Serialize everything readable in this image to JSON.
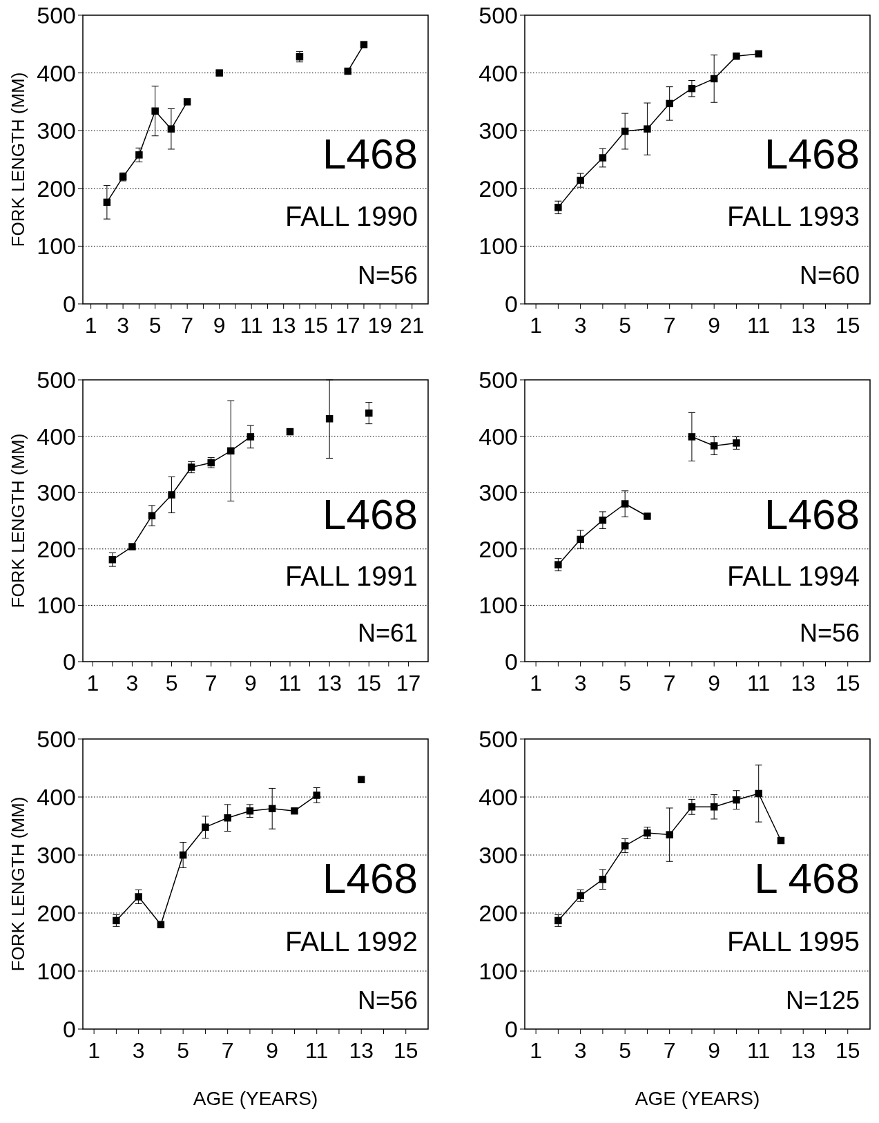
{
  "chart_data": [
    {
      "type": "line",
      "ylabel": "FORK LENGTH (MM)",
      "annotations": [
        "L468",
        "FALL 1990",
        "N=56"
      ],
      "series": [
        {
          "color": "#000000",
          "x": [
            2,
            3,
            4,
            5,
            6,
            7
          ],
          "values": [
            176,
            220,
            258,
            334,
            303,
            350
          ],
          "errors": [
            29,
            7,
            12,
            43,
            35,
            null
          ]
        },
        {
          "color": "#000000",
          "x": [
            9
          ],
          "values": [
            400
          ]
        },
        {
          "color": "#000000",
          "x": [
            14
          ],
          "values": [
            428
          ],
          "errors": [
            9
          ]
        },
        {
          "color": "#000000",
          "x": [
            17,
            18
          ],
          "values": [
            403,
            449
          ]
        }
      ],
      "xlim": [
        0.5,
        22
      ],
      "xticks": [
        1,
        {
          "value": 2,
          "label": null
        },
        3,
        {
          "value": 4,
          "label": null
        },
        5,
        {
          "value": 6,
          "label": null
        },
        7,
        {
          "value": 8,
          "label": null
        },
        9,
        {
          "value": 10,
          "label": null
        },
        11,
        {
          "value": 12,
          "label": null
        },
        13,
        {
          "value": 14,
          "label": null
        },
        15,
        {
          "value": 16,
          "label": null
        },
        17,
        {
          "value": 18,
          "label": null
        },
        19,
        {
          "value": 20,
          "label": null
        },
        21
      ],
      "ylim": [
        0,
        500
      ],
      "yticks": [
        0,
        100,
        200,
        300,
        400,
        500
      ],
      "grid": "y",
      "marker": "square",
      "line_style": "solid"
    },
    {
      "type": "line",
      "annotations": [
        "L468",
        "FALL 1993",
        "N=60"
      ],
      "x": [
        2,
        3,
        4,
        5,
        6,
        7,
        8,
        9,
        10,
        11
      ],
      "series": [
        {
          "color": "#000000",
          "values": [
            167,
            214,
            253,
            299,
            303,
            347,
            373,
            390,
            429,
            433
          ],
          "errors": [
            11,
            12,
            16,
            31,
            45,
            29,
            14,
            41,
            null,
            null
          ]
        }
      ],
      "xlim": [
        0.5,
        16
      ],
      "xticks": [
        1,
        {
          "value": 2,
          "label": null
        },
        3,
        {
          "value": 4,
          "label": null
        },
        5,
        {
          "value": 6,
          "label": null
        },
        7,
        {
          "value": 8,
          "label": null
        },
        9,
        {
          "value": 10,
          "label": null
        },
        11,
        {
          "value": 12,
          "label": null
        },
        13,
        {
          "value": 14,
          "label": null
        },
        15
      ],
      "ylim": [
        0,
        500
      ],
      "yticks": [
        0,
        100,
        200,
        300,
        400,
        500
      ],
      "grid": "y",
      "marker": "square",
      "line_style": "solid"
    },
    {
      "type": "line",
      "ylabel": "FORK LENGTH (MM)",
      "annotations": [
        "L468",
        "FALL 1991",
        "N=61"
      ],
      "series": [
        {
          "color": "#000000",
          "x": [
            2,
            3,
            4,
            5,
            6,
            7,
            8,
            9
          ],
          "values": [
            181,
            204,
            259,
            296,
            345,
            353,
            374,
            399
          ],
          "errors": [
            12,
            null,
            18,
            32,
            10,
            9,
            89,
            20
          ]
        },
        {
          "color": "#000000",
          "x": [
            11
          ],
          "values": [
            408
          ]
        },
        {
          "color": "#000000",
          "x": [
            13
          ],
          "values": [
            431
          ],
          "errors": [
            [
              361,
              500
            ]
          ]
        },
        {
          "color": "#000000",
          "x": [
            15
          ],
          "values": [
            441
          ],
          "errors": [
            19
          ]
        }
      ],
      "xlim": [
        0.5,
        18
      ],
      "xticks": [
        1,
        {
          "value": 2,
          "label": null
        },
        3,
        {
          "value": 4,
          "label": null
        },
        5,
        {
          "value": 6,
          "label": null
        },
        7,
        {
          "value": 8,
          "label": null
        },
        9,
        {
          "value": 10,
          "label": null
        },
        11,
        {
          "value": 12,
          "label": null
        },
        13,
        {
          "value": 14,
          "label": null
        },
        15,
        {
          "value": 16,
          "label": null
        },
        17
      ],
      "ylim": [
        0,
        500
      ],
      "yticks": [
        0,
        100,
        200,
        300,
        400,
        500
      ],
      "grid": "y",
      "marker": "square",
      "line_style": "solid"
    },
    {
      "type": "line",
      "annotations": [
        "L468",
        "FALL 1994",
        "N=56"
      ],
      "series": [
        {
          "color": "#000000",
          "x": [
            2,
            3,
            4,
            5,
            6
          ],
          "values": [
            172,
            217,
            251,
            280,
            258
          ],
          "errors": [
            11,
            16,
            15,
            23,
            null
          ]
        },
        {
          "color": "#000000",
          "x": [
            8,
            9,
            10
          ],
          "values": [
            399,
            383,
            388
          ],
          "errors": [
            43,
            16,
            11
          ]
        }
      ],
      "xlim": [
        0.5,
        16
      ],
      "xticks": [
        1,
        {
          "value": 2,
          "label": null
        },
        3,
        {
          "value": 4,
          "label": null
        },
        5,
        {
          "value": 6,
          "label": null
        },
        7,
        {
          "value": 8,
          "label": null
        },
        9,
        {
          "value": 10,
          "label": null
        },
        11,
        {
          "value": 12,
          "label": null
        },
        13,
        {
          "value": 14,
          "label": null
        },
        15
      ],
      "ylim": [
        0,
        500
      ],
      "yticks": [
        0,
        100,
        200,
        300,
        400,
        500
      ],
      "grid": "y",
      "marker": "square",
      "line_style": "solid"
    },
    {
      "type": "line",
      "ylabel": "FORK LENGTH (MM)",
      "xlabel": "AGE (YEARS)",
      "annotations": [
        "L468",
        "FALL 1992",
        "N=56"
      ],
      "series": [
        {
          "color": "#000000",
          "x": [
            2,
            3,
            4,
            5,
            6,
            7,
            8,
            9,
            10,
            11
          ],
          "values": [
            187,
            228,
            180,
            300,
            348,
            364,
            376,
            380,
            376,
            403
          ],
          "errors": [
            10,
            12,
            null,
            22,
            19,
            23,
            11,
            35,
            null,
            13
          ]
        },
        {
          "color": "#000000",
          "x": [
            13
          ],
          "values": [
            430
          ]
        }
      ],
      "xlim": [
        0.5,
        16
      ],
      "xticks": [
        1,
        {
          "value": 2,
          "label": null
        },
        3,
        {
          "value": 4,
          "label": null
        },
        5,
        {
          "value": 6,
          "label": null
        },
        7,
        {
          "value": 8,
          "label": null
        },
        9,
        {
          "value": 10,
          "label": null
        },
        11,
        {
          "value": 12,
          "label": null
        },
        13,
        {
          "value": 14,
          "label": null
        },
        15
      ],
      "ylim": [
        0,
        500
      ],
      "yticks": [
        0,
        100,
        200,
        300,
        400,
        500
      ],
      "grid": "y",
      "marker": "square",
      "line_style": "solid"
    },
    {
      "type": "line",
      "xlabel": "AGE (YEARS)",
      "annotations": [
        "L 468",
        "FALL 1995",
        "N=125"
      ],
      "x": [
        2,
        3,
        4,
        5,
        6,
        7,
        8,
        9,
        10,
        11,
        12
      ],
      "series": [
        {
          "color": "#000000",
          "values": [
            187,
            230,
            258,
            316,
            338,
            335,
            383,
            383,
            395,
            406,
            325
          ],
          "errors": [
            10,
            10,
            17,
            12,
            10,
            46,
            13,
            21,
            16,
            49,
            null
          ]
        }
      ],
      "xlim": [
        0.5,
        16
      ],
      "xticks": [
        1,
        {
          "value": 2,
          "label": null
        },
        3,
        {
          "value": 4,
          "label": null
        },
        5,
        {
          "value": 6,
          "label": null
        },
        7,
        {
          "value": 8,
          "label": null
        },
        9,
        {
          "value": 10,
          "label": null
        },
        11,
        {
          "value": 12,
          "label": null
        },
        13,
        {
          "value": 14,
          "label": null
        },
        15
      ],
      "ylim": [
        0,
        500
      ],
      "yticks": [
        0,
        100,
        200,
        300,
        400,
        500
      ],
      "grid": "y",
      "marker": "square",
      "line_style": "solid"
    }
  ]
}
